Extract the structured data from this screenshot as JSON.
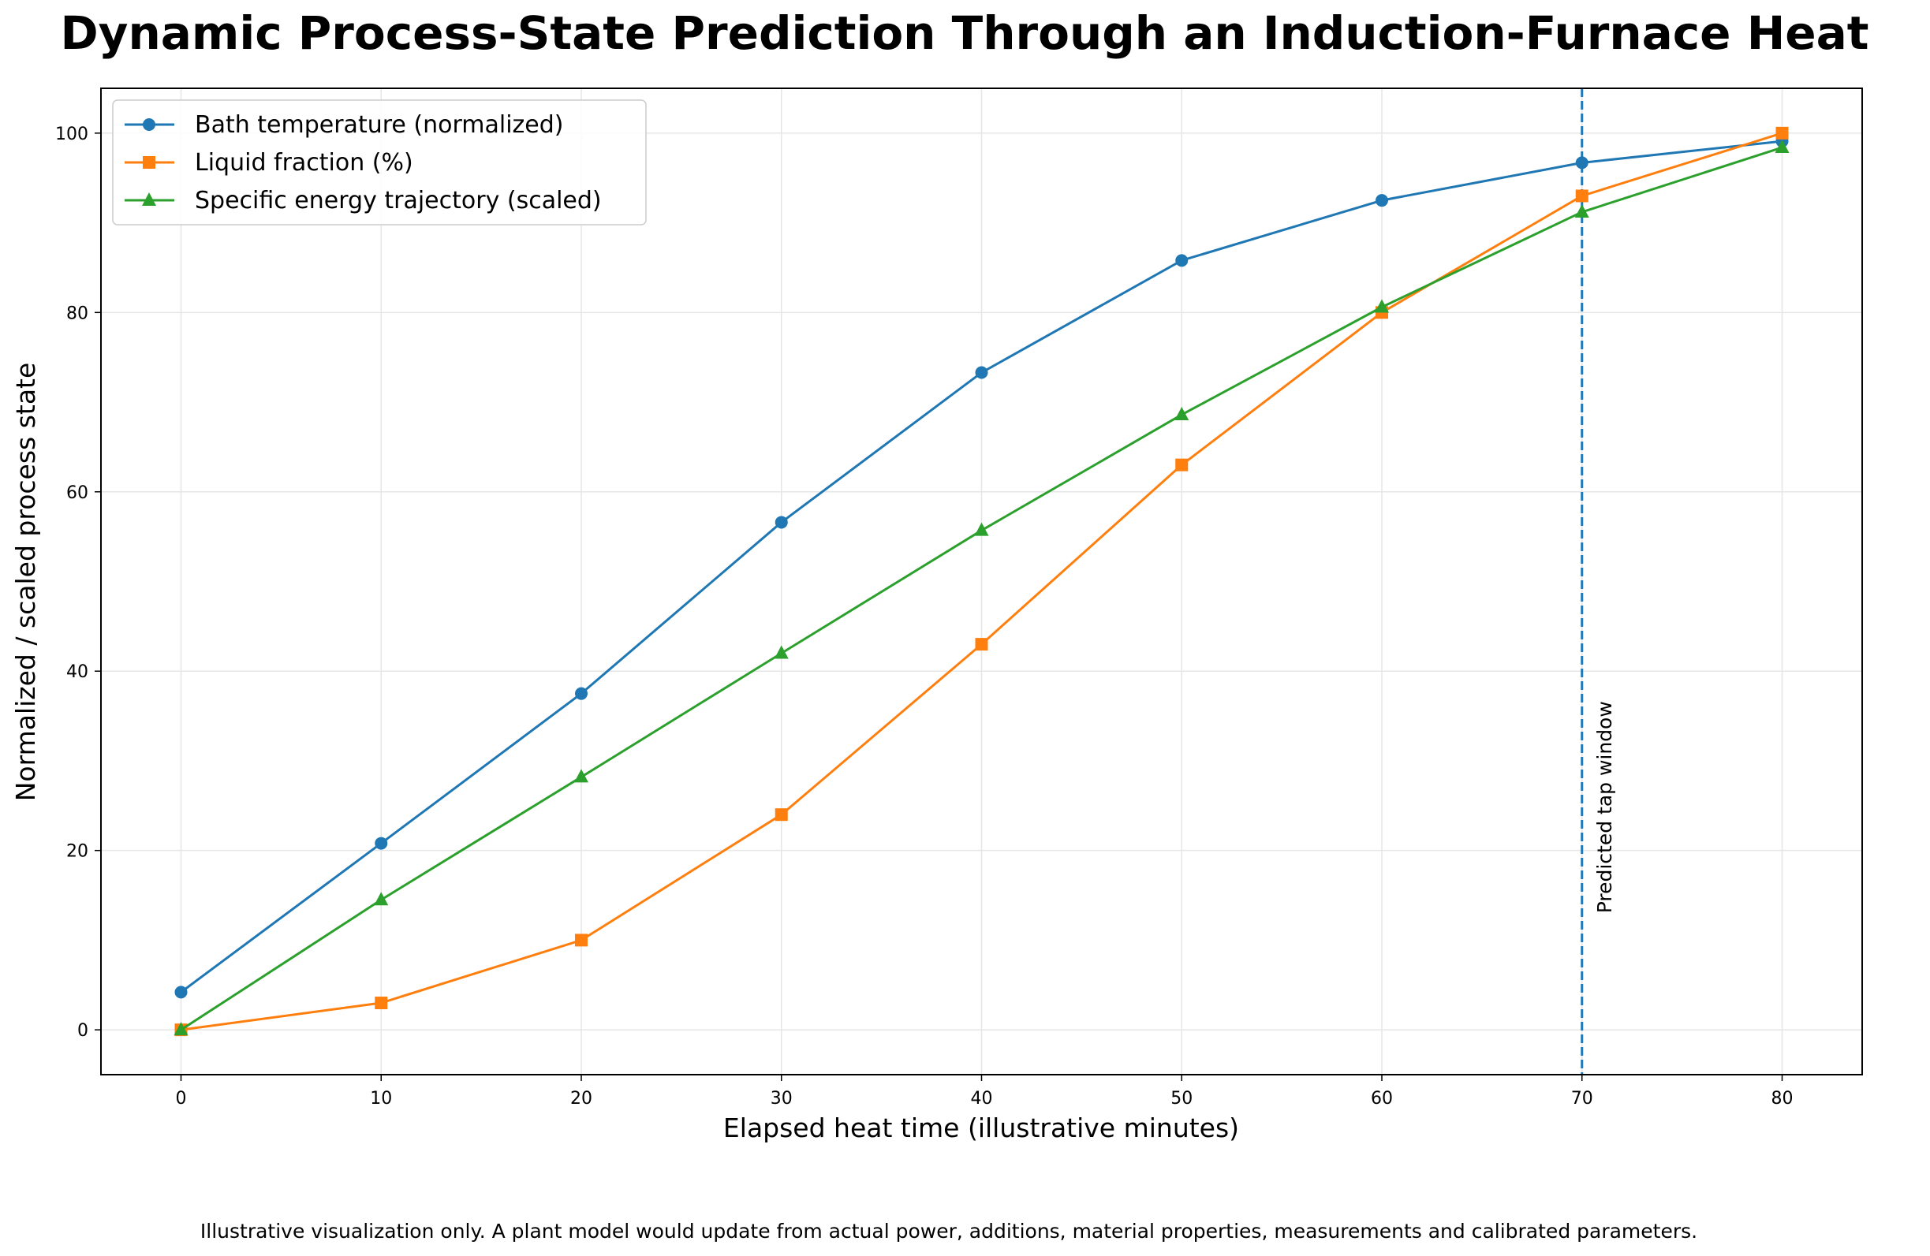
{
  "chart_data": {
    "type": "line",
    "title": "Dynamic Process-State Prediction Through an Induction-Furnace Heat",
    "xlabel": "Elapsed heat time (illustrative minutes)",
    "ylabel": "Normalized / scaled process state",
    "xlim": [
      -4,
      84
    ],
    "ylim": [
      -5,
      105
    ],
    "xticks": [
      0,
      10,
      20,
      30,
      40,
      50,
      60,
      70,
      80
    ],
    "yticks": [
      0,
      20,
      40,
      60,
      80,
      100
    ],
    "grid": true,
    "legend_position": "top-left",
    "x": [
      0,
      10,
      20,
      30,
      40,
      50,
      60,
      70,
      80
    ],
    "series": [
      {
        "name": "Bath temperature (normalized)",
        "color": "#1f77b4",
        "marker": "circle",
        "values": [
          4.2,
          20.8,
          37.5,
          56.6,
          73.3,
          85.8,
          92.5,
          96.7,
          99.1
        ]
      },
      {
        "name": "Liquid fraction (%)",
        "color": "#ff7f0e",
        "marker": "square",
        "values": [
          0,
          3,
          10,
          24,
          43,
          63,
          80,
          93,
          100
        ]
      },
      {
        "name": "Specific energy trajectory (scaled)",
        "color": "#2ca02c",
        "marker": "triangle",
        "values": [
          0,
          14.5,
          28.2,
          42,
          55.7,
          68.6,
          80.6,
          91.2,
          98.4
        ]
      }
    ],
    "annotations": [
      {
        "type": "vline",
        "x": 70,
        "style": "dashed",
        "color": "#1f77b4",
        "label": "Predicted tap window"
      }
    ]
  },
  "footnote": "Illustrative visualization only. A plant model would update from actual power, additions, material properties, measurements and calibrated parameters."
}
